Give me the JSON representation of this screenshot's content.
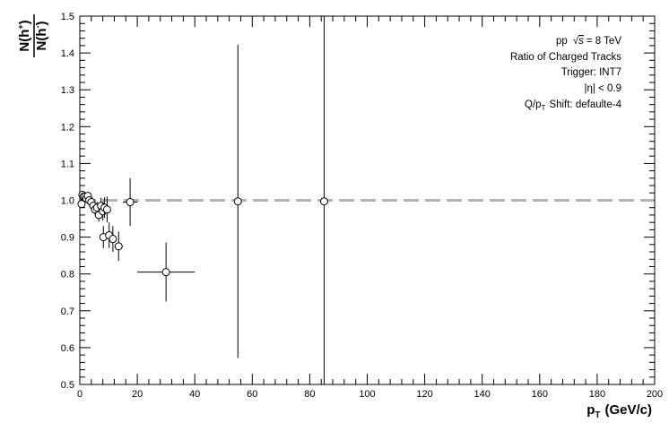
{
  "chart_data": {
    "type": "scatter",
    "xlabel": "p",
    "xlabel_sub": "T",
    "xlabel_units": "(GeV/c)",
    "ylabel": "N(h+)/N(h-)",
    "xlim": [
      0,
      200
    ],
    "ylim": [
      0.5,
      1.5
    ],
    "x_ticks": [
      "0",
      "20",
      "40",
      "60",
      "80",
      "100",
      "120",
      "140",
      "160",
      "180",
      "200"
    ],
    "y_ticks": [
      "0.5",
      "0.6",
      "0.7",
      "0.8",
      "0.9",
      "1.0",
      "1.1",
      "1.2",
      "1.3",
      "1.4",
      "1.5"
    ],
    "grid": false,
    "reference_line": {
      "y": 1.0,
      "style": "dashed",
      "color": "#b3b3b3"
    },
    "annotations": {
      "line1_pre": "pp",
      "line1_sqrt": "√",
      "line1_s": "s",
      "line1_post": "= 8 TeV",
      "line2": "Ratio of Charged Tracks",
      "line3": "Trigger: INT7",
      "line4": "|η| < 0.9",
      "line5_pre": "Q/p",
      "line5_sub": "T",
      "line5_post": "Shift: defaulte-4"
    },
    "points": [
      {
        "x": 0.6,
        "y": 0.99,
        "xerr": 0.15,
        "yerr": 0.004
      },
      {
        "x": 0.9,
        "y": 1.015,
        "xerr": 0.15,
        "yerr": 0.004
      },
      {
        "x": 1.3,
        "y": 1.01,
        "xerr": 0.2,
        "yerr": 0.004
      },
      {
        "x": 1.8,
        "y": 1.01,
        "xerr": 0.25,
        "yerr": 0.005
      },
      {
        "x": 2.3,
        "y": 1.005,
        "xerr": 0.25,
        "yerr": 0.006
      },
      {
        "x": 2.8,
        "y": 1.012,
        "xerr": 0.25,
        "yerr": 0.007
      },
      {
        "x": 3.3,
        "y": 1.0,
        "xerr": 0.25,
        "yerr": 0.008
      },
      {
        "x": 4.0,
        "y": 0.995,
        "xerr": 0.4,
        "yerr": 0.01
      },
      {
        "x": 4.7,
        "y": 0.985,
        "xerr": 0.3,
        "yerr": 0.012
      },
      {
        "x": 5.3,
        "y": 0.975,
        "xerr": 0.3,
        "yerr": 0.014
      },
      {
        "x": 6.0,
        "y": 0.98,
        "xerr": 0.4,
        "yerr": 0.016
      },
      {
        "x": 6.6,
        "y": 0.96,
        "xerr": 0.4,
        "yerr": 0.018
      },
      {
        "x": 7.4,
        "y": 0.985,
        "xerr": 0.45,
        "yerr": 0.022
      },
      {
        "x": 8.0,
        "y": 0.97,
        "xerr": 0.5,
        "yerr": 0.025
      },
      {
        "x": 8.6,
        "y": 0.98,
        "xerr": 0.5,
        "yerr": 0.028
      },
      {
        "x": 8.2,
        "y": 0.9,
        "xerr": 0.5,
        "yerr": 0.03
      },
      {
        "x": 9.5,
        "y": 0.975,
        "xerr": 0.6,
        "yerr": 0.035
      },
      {
        "x": 10.2,
        "y": 0.905,
        "xerr": 0.7,
        "yerr": 0.035
      },
      {
        "x": 11.5,
        "y": 0.895,
        "xerr": 1.0,
        "yerr": 0.035
      },
      {
        "x": 13.5,
        "y": 0.875,
        "xerr": 1.5,
        "yerr": 0.04
      },
      {
        "x": 17.5,
        "y": 0.995,
        "xerr": 2.5,
        "yerr": 0.065
      },
      {
        "x": 30.0,
        "y": 0.805,
        "xerr": 10.0,
        "yerr": 0.08
      },
      {
        "x": 55.0,
        "y": 0.997,
        "xerr": 0.5,
        "yerr": 0.425
      },
      {
        "x": 85.0,
        "y": 0.997,
        "xerr": 0.5,
        "yerr": 0.6
      }
    ]
  }
}
